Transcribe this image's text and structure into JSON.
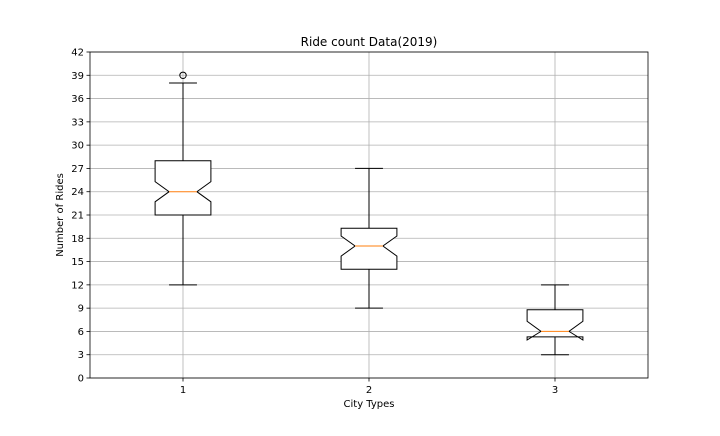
{
  "chart_data": {
    "type": "box",
    "title": "Ride count Data(2019)",
    "xlabel": "City Types",
    "ylabel": "Number of Rides",
    "categories": [
      "1",
      "2",
      "3"
    ],
    "ylim": [
      0,
      42
    ],
    "yticks": [
      0,
      3,
      6,
      9,
      12,
      15,
      18,
      21,
      24,
      27,
      30,
      33,
      36,
      39,
      42
    ],
    "grid": true,
    "notched": true,
    "boxes": [
      {
        "category": "1",
        "whisker_low": 12,
        "q1": 21,
        "median": 24,
        "q3": 28,
        "whisker_high": 38,
        "notch_low": 22.7,
        "notch_high": 25.3,
        "outliers": [
          39
        ]
      },
      {
        "category": "2",
        "whisker_low": 9,
        "q1": 14,
        "median": 17,
        "q3": 19.3,
        "whisker_high": 27,
        "notch_low": 15.7,
        "notch_high": 18.3,
        "outliers": []
      },
      {
        "category": "3",
        "whisker_low": 3,
        "q1": 5.3,
        "median": 6,
        "q3": 8.8,
        "whisker_high": 12,
        "notch_low": 4.9,
        "notch_high": 7.3,
        "outliers": []
      }
    ],
    "colors": {
      "box": "#000000",
      "median": "#ff7f0e",
      "grid": "#b0b0b0"
    }
  }
}
